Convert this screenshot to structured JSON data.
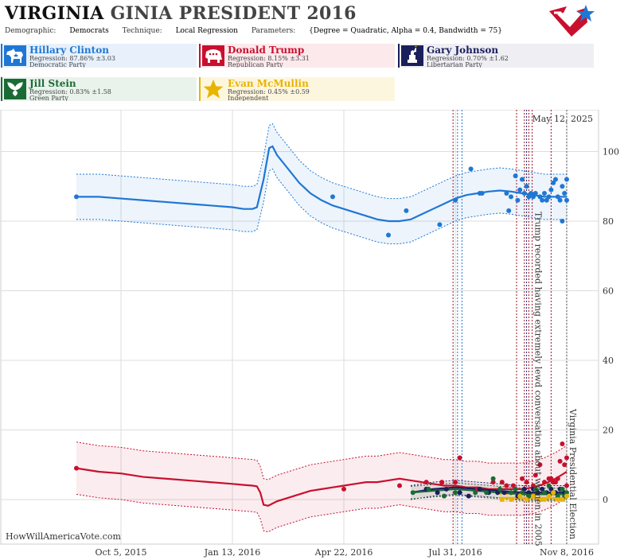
{
  "header": {
    "title_state": "VIRGINIA",
    "title_rest": "GINIA PRESIDENT 2016",
    "demographic_label": "Demographic:",
    "demographic_value": "Democrats",
    "technique_label": "Technique:",
    "technique_value": "Local Regression",
    "parameters_label": "Parameters:",
    "parameters_value": "{Degree = Quadratic, Alpha = 0.4, Bandwidth = 75}"
  },
  "candidates": [
    {
      "name": "Hillary Clinton",
      "regression": "Regression: 87.86% ±3.03",
      "party": "Democratic Party",
      "color": "#1f77d4",
      "bg": "#e8f1fb",
      "icon": "donkey-icon"
    },
    {
      "name": "Donald Trump",
      "regression": "Regression: 8.15% ±3.31",
      "party": "Republican Party",
      "color": "#c8102e",
      "bg": "#fbe9ec",
      "icon": "elephant-icon"
    },
    {
      "name": "Gary Johnson",
      "regression": "Regression: 0.70% ±1.62",
      "party": "Libertarian Party",
      "color": "#1a1f5c",
      "bg": "#eeeef3",
      "icon": "liberty-statue-icon"
    },
    {
      "name": "Jill Stein",
      "regression": "Regression: 0.83% ±1.58",
      "party": "Green Party",
      "color": "#1b6b35",
      "bg": "#e9f3ec",
      "icon": "leaf-icon"
    },
    {
      "name": "Evan McMullin",
      "regression": "Regression: 0.45% ±0.59",
      "party": "Independent",
      "color": "#e8b400",
      "bg": "#fdf6df",
      "icon": "star-icon"
    }
  ],
  "chart_data": {
    "type": "scatter",
    "x_tick_labels": [
      "Oct 5, 2015",
      "Jan 13, 2016",
      "Apr 22, 2016",
      "Jul 31, 2016",
      "Nov 8, 2016"
    ],
    "x_tick_days": [
      0,
      100,
      200,
      300,
      400
    ],
    "y_ticks": [
      0,
      20,
      40,
      60,
      80,
      100
    ],
    "ylim": [
      -12,
      112
    ],
    "grid": true,
    "date_label": "May 12, 2025",
    "watermark": "HowWillAmericaVote.com",
    "annotations": [
      {
        "text": "Trump recorded having extremely lewd conversation about women in 2005",
        "day": 369,
        "color": "#a0102a"
      },
      {
        "text": "Virginia Presidential Election",
        "day": 400,
        "color": "#555555"
      }
    ],
    "event_lines": [
      {
        "day": 298,
        "color": "#a0102a"
      },
      {
        "day": 302,
        "color": "#1f77d4"
      },
      {
        "day": 306,
        "color": "#1f77d4"
      },
      {
        "day": 355,
        "color": "#a0102a"
      },
      {
        "day": 362,
        "color": "#a0102a"
      },
      {
        "day": 364,
        "color": "#1a1f5c"
      },
      {
        "day": 366,
        "color": "#a0102a"
      },
      {
        "day": 369,
        "color": "#a0102a"
      },
      {
        "day": 386,
        "color": "#a0102a"
      },
      {
        "day": 400,
        "color": "#555555"
      }
    ],
    "series": [
      {
        "name": "Hillary Clinton",
        "color": "#1f77d4",
        "band": 6.5,
        "line": [
          [
            -40,
            87
          ],
          [
            -20,
            87
          ],
          [
            0,
            86.5
          ],
          [
            20,
            86
          ],
          [
            40,
            85.5
          ],
          [
            60,
            85
          ],
          [
            80,
            84.5
          ],
          [
            100,
            84
          ],
          [
            110,
            83.5
          ],
          [
            118,
            83.5
          ],
          [
            122,
            84
          ],
          [
            128,
            92
          ],
          [
            133,
            101
          ],
          [
            136,
            101.5
          ],
          [
            140,
            99
          ],
          [
            150,
            95
          ],
          [
            160,
            91
          ],
          [
            170,
            88
          ],
          [
            180,
            86
          ],
          [
            190,
            84.5
          ],
          [
            200,
            83.5
          ],
          [
            210,
            82.5
          ],
          [
            220,
            81.5
          ],
          [
            230,
            80.5
          ],
          [
            240,
            80
          ],
          [
            250,
            80
          ],
          [
            260,
            80.5
          ],
          [
            270,
            82
          ],
          [
            280,
            83.5
          ],
          [
            290,
            85
          ],
          [
            300,
            86.5
          ],
          [
            310,
            87.5
          ],
          [
            320,
            88
          ],
          [
            330,
            88.5
          ],
          [
            340,
            88.8
          ],
          [
            350,
            88.5
          ],
          [
            360,
            88
          ],
          [
            370,
            87.5
          ],
          [
            380,
            87
          ],
          [
            390,
            87
          ],
          [
            400,
            87
          ]
        ],
        "points": [
          [
            -40,
            87
          ],
          [
            190,
            87
          ],
          [
            240,
            76
          ],
          [
            256,
            83
          ],
          [
            286,
            79
          ],
          [
            300,
            86
          ],
          [
            314,
            95
          ],
          [
            322,
            88
          ],
          [
            324,
            88
          ],
          [
            346,
            88
          ],
          [
            348,
            83
          ],
          [
            350,
            87
          ],
          [
            354,
            93
          ],
          [
            356,
            86
          ],
          [
            358,
            89
          ],
          [
            360,
            92
          ],
          [
            362,
            88
          ],
          [
            364,
            90
          ],
          [
            366,
            87
          ],
          [
            368,
            88
          ],
          [
            370,
            87
          ],
          [
            372,
            88
          ],
          [
            376,
            87
          ],
          [
            378,
            86
          ],
          [
            380,
            88
          ],
          [
            382,
            86
          ],
          [
            384,
            87
          ],
          [
            386,
            89
          ],
          [
            388,
            91
          ],
          [
            390,
            92
          ],
          [
            392,
            87
          ],
          [
            394,
            86
          ],
          [
            396,
            90
          ],
          [
            398,
            88
          ],
          [
            400,
            92
          ],
          [
            400,
            86
          ],
          [
            396,
            80
          ]
        ]
      },
      {
        "name": "Donald Trump",
        "color": "#c8102e",
        "band": 7.5,
        "line": [
          [
            -40,
            9
          ],
          [
            -20,
            8
          ],
          [
            0,
            7.5
          ],
          [
            20,
            6.5
          ],
          [
            40,
            6
          ],
          [
            60,
            5.5
          ],
          [
            80,
            5
          ],
          [
            100,
            4.5
          ],
          [
            110,
            4.2
          ],
          [
            118,
            4
          ],
          [
            122,
            3.8
          ],
          [
            125,
            2
          ],
          [
            128,
            -1.5
          ],
          [
            132,
            -1.8
          ],
          [
            140,
            -0.5
          ],
          [
            150,
            0.5
          ],
          [
            160,
            1.5
          ],
          [
            170,
            2.5
          ],
          [
            180,
            3
          ],
          [
            190,
            3.5
          ],
          [
            200,
            4
          ],
          [
            210,
            4.5
          ],
          [
            220,
            5
          ],
          [
            230,
            5
          ],
          [
            240,
            5.5
          ],
          [
            250,
            6
          ],
          [
            260,
            5.5
          ],
          [
            270,
            5
          ],
          [
            280,
            4.5
          ],
          [
            290,
            4
          ],
          [
            300,
            4
          ],
          [
            310,
            3.5
          ],
          [
            320,
            3.5
          ],
          [
            330,
            3
          ],
          [
            340,
            3
          ],
          [
            350,
            3
          ],
          [
            360,
            3
          ],
          [
            370,
            3.5
          ],
          [
            380,
            4.5
          ],
          [
            390,
            6
          ],
          [
            400,
            8
          ]
        ],
        "points": [
          [
            -40,
            9
          ],
          [
            200,
            3
          ],
          [
            250,
            4
          ],
          [
            274,
            5
          ],
          [
            288,
            5
          ],
          [
            300,
            5
          ],
          [
            304,
            12
          ],
          [
            320,
            3
          ],
          [
            334,
            5
          ],
          [
            342,
            5
          ],
          [
            346,
            4
          ],
          [
            352,
            4
          ],
          [
            360,
            6
          ],
          [
            364,
            5
          ],
          [
            370,
            4
          ],
          [
            372,
            7
          ],
          [
            376,
            10
          ],
          [
            380,
            5
          ],
          [
            384,
            6
          ],
          [
            386,
            6
          ],
          [
            388,
            5
          ],
          [
            390,
            5
          ],
          [
            392,
            6
          ],
          [
            394,
            11
          ],
          [
            396,
            16
          ],
          [
            398,
            10
          ],
          [
            400,
            4
          ],
          [
            400,
            12
          ]
        ]
      },
      {
        "name": "Gary Johnson",
        "color": "#1a1f5c",
        "band": 2,
        "line": [
          [
            260,
            2
          ],
          [
            280,
            3
          ],
          [
            300,
            3.5
          ],
          [
            320,
            3
          ],
          [
            340,
            2.5
          ],
          [
            360,
            2
          ],
          [
            380,
            2
          ],
          [
            400,
            2
          ]
        ],
        "points": [
          [
            274,
            3
          ],
          [
            284,
            2
          ],
          [
            292,
            3
          ],
          [
            304,
            2
          ],
          [
            312,
            1
          ],
          [
            322,
            3
          ],
          [
            330,
            2
          ],
          [
            338,
            2
          ],
          [
            344,
            2
          ],
          [
            350,
            2
          ],
          [
            356,
            1
          ],
          [
            362,
            3
          ],
          [
            366,
            2
          ],
          [
            370,
            3
          ],
          [
            374,
            2
          ],
          [
            378,
            3
          ],
          [
            382,
            2
          ],
          [
            386,
            3
          ],
          [
            390,
            2
          ],
          [
            394,
            3
          ],
          [
            398,
            2
          ],
          [
            400,
            1
          ]
        ]
      },
      {
        "name": "Jill Stein",
        "color": "#1b6b35",
        "band": 1.8,
        "line": [
          [
            260,
            2
          ],
          [
            280,
            2.5
          ],
          [
            300,
            3
          ],
          [
            320,
            2.5
          ],
          [
            340,
            2
          ],
          [
            360,
            1.5
          ],
          [
            380,
            1.5
          ],
          [
            400,
            1.5
          ]
        ],
        "points": [
          [
            262,
            2
          ],
          [
            276,
            3
          ],
          [
            290,
            1
          ],
          [
            300,
            2
          ],
          [
            318,
            2
          ],
          [
            328,
            2
          ],
          [
            334,
            6
          ],
          [
            340,
            3
          ],
          [
            350,
            2
          ],
          [
            354,
            3
          ],
          [
            360,
            2
          ],
          [
            366,
            1
          ],
          [
            372,
            3
          ],
          [
            380,
            2
          ],
          [
            384,
            4
          ],
          [
            388,
            2
          ],
          [
            392,
            1
          ],
          [
            396,
            3
          ],
          [
            398,
            1
          ],
          [
            400,
            2
          ]
        ]
      },
      {
        "name": "Evan McMullin",
        "color": "#e8b400",
        "band": 1,
        "line": [
          [
            340,
            0.5
          ],
          [
            360,
            0.5
          ],
          [
            380,
            0.5
          ],
          [
            400,
            0.5
          ]
        ],
        "points": [
          [
            342,
            0
          ],
          [
            350,
            0
          ],
          [
            358,
            1
          ],
          [
            364,
            0
          ],
          [
            370,
            1
          ],
          [
            376,
            0
          ],
          [
            380,
            0
          ],
          [
            384,
            1
          ],
          [
            388,
            2
          ],
          [
            392,
            0
          ],
          [
            396,
            0
          ],
          [
            400,
            1
          ]
        ]
      }
    ]
  }
}
